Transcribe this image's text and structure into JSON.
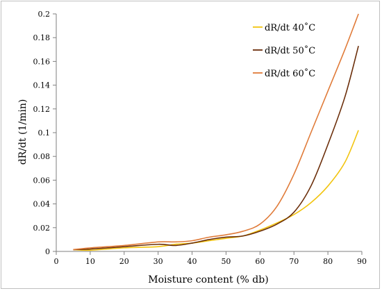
{
  "chart_data": {
    "type": "line",
    "title": "",
    "xlabel": "Moisture content (% db)",
    "ylabel": "dR/dt (1/min)",
    "xlim": [
      0,
      90
    ],
    "ylim": [
      0,
      0.2
    ],
    "x_ticks": [
      "0",
      "10",
      "20",
      "30",
      "40",
      "50",
      "60",
      "70",
      "80",
      "90"
    ],
    "y_ticks": [
      "0",
      "0.02",
      "0.04",
      "0.06",
      "0.08",
      "0.1",
      "0.12",
      "0.14",
      "0.16",
      "0.18",
      "0.2"
    ],
    "grid": false,
    "legend_position": "top-right",
    "series": [
      {
        "name": "dR/dt 40˚C",
        "color": "#f2c40f",
        "points": [
          [
            5,
            0.0015
          ],
          [
            10,
            0.001
          ],
          [
            20,
            0.003
          ],
          [
            30,
            0.004
          ],
          [
            35,
            0.006
          ],
          [
            40,
            0.007
          ],
          [
            45,
            0.009
          ],
          [
            50,
            0.011
          ],
          [
            55,
            0.013
          ],
          [
            60,
            0.018
          ],
          [
            65,
            0.024
          ],
          [
            70,
            0.031
          ],
          [
            75,
            0.041
          ],
          [
            80,
            0.055
          ],
          [
            85,
            0.075
          ],
          [
            89,
            0.102
          ]
        ]
      },
      {
        "name": "dR/dt 50˚C",
        "color": "#6b2e0a",
        "points": [
          [
            5,
            0.0015
          ],
          [
            10,
            0.002
          ],
          [
            20,
            0.004
          ],
          [
            30,
            0.006
          ],
          [
            35,
            0.005
          ],
          [
            40,
            0.007
          ],
          [
            45,
            0.01
          ],
          [
            50,
            0.012
          ],
          [
            55,
            0.013
          ],
          [
            60,
            0.017
          ],
          [
            65,
            0.023
          ],
          [
            70,
            0.033
          ],
          [
            75,
            0.055
          ],
          [
            80,
            0.09
          ],
          [
            85,
            0.13
          ],
          [
            89,
            0.173
          ]
        ]
      },
      {
        "name": "dR/dt 60˚C",
        "color": "#e07b39",
        "points": [
          [
            5,
            0.0015
          ],
          [
            10,
            0.003
          ],
          [
            20,
            0.005
          ],
          [
            30,
            0.008
          ],
          [
            35,
            0.008
          ],
          [
            40,
            0.009
          ],
          [
            45,
            0.012
          ],
          [
            50,
            0.014
          ],
          [
            55,
            0.017
          ],
          [
            60,
            0.023
          ],
          [
            65,
            0.038
          ],
          [
            70,
            0.065
          ],
          [
            75,
            0.1
          ],
          [
            80,
            0.135
          ],
          [
            85,
            0.17
          ],
          [
            89,
            0.2
          ]
        ]
      }
    ]
  }
}
